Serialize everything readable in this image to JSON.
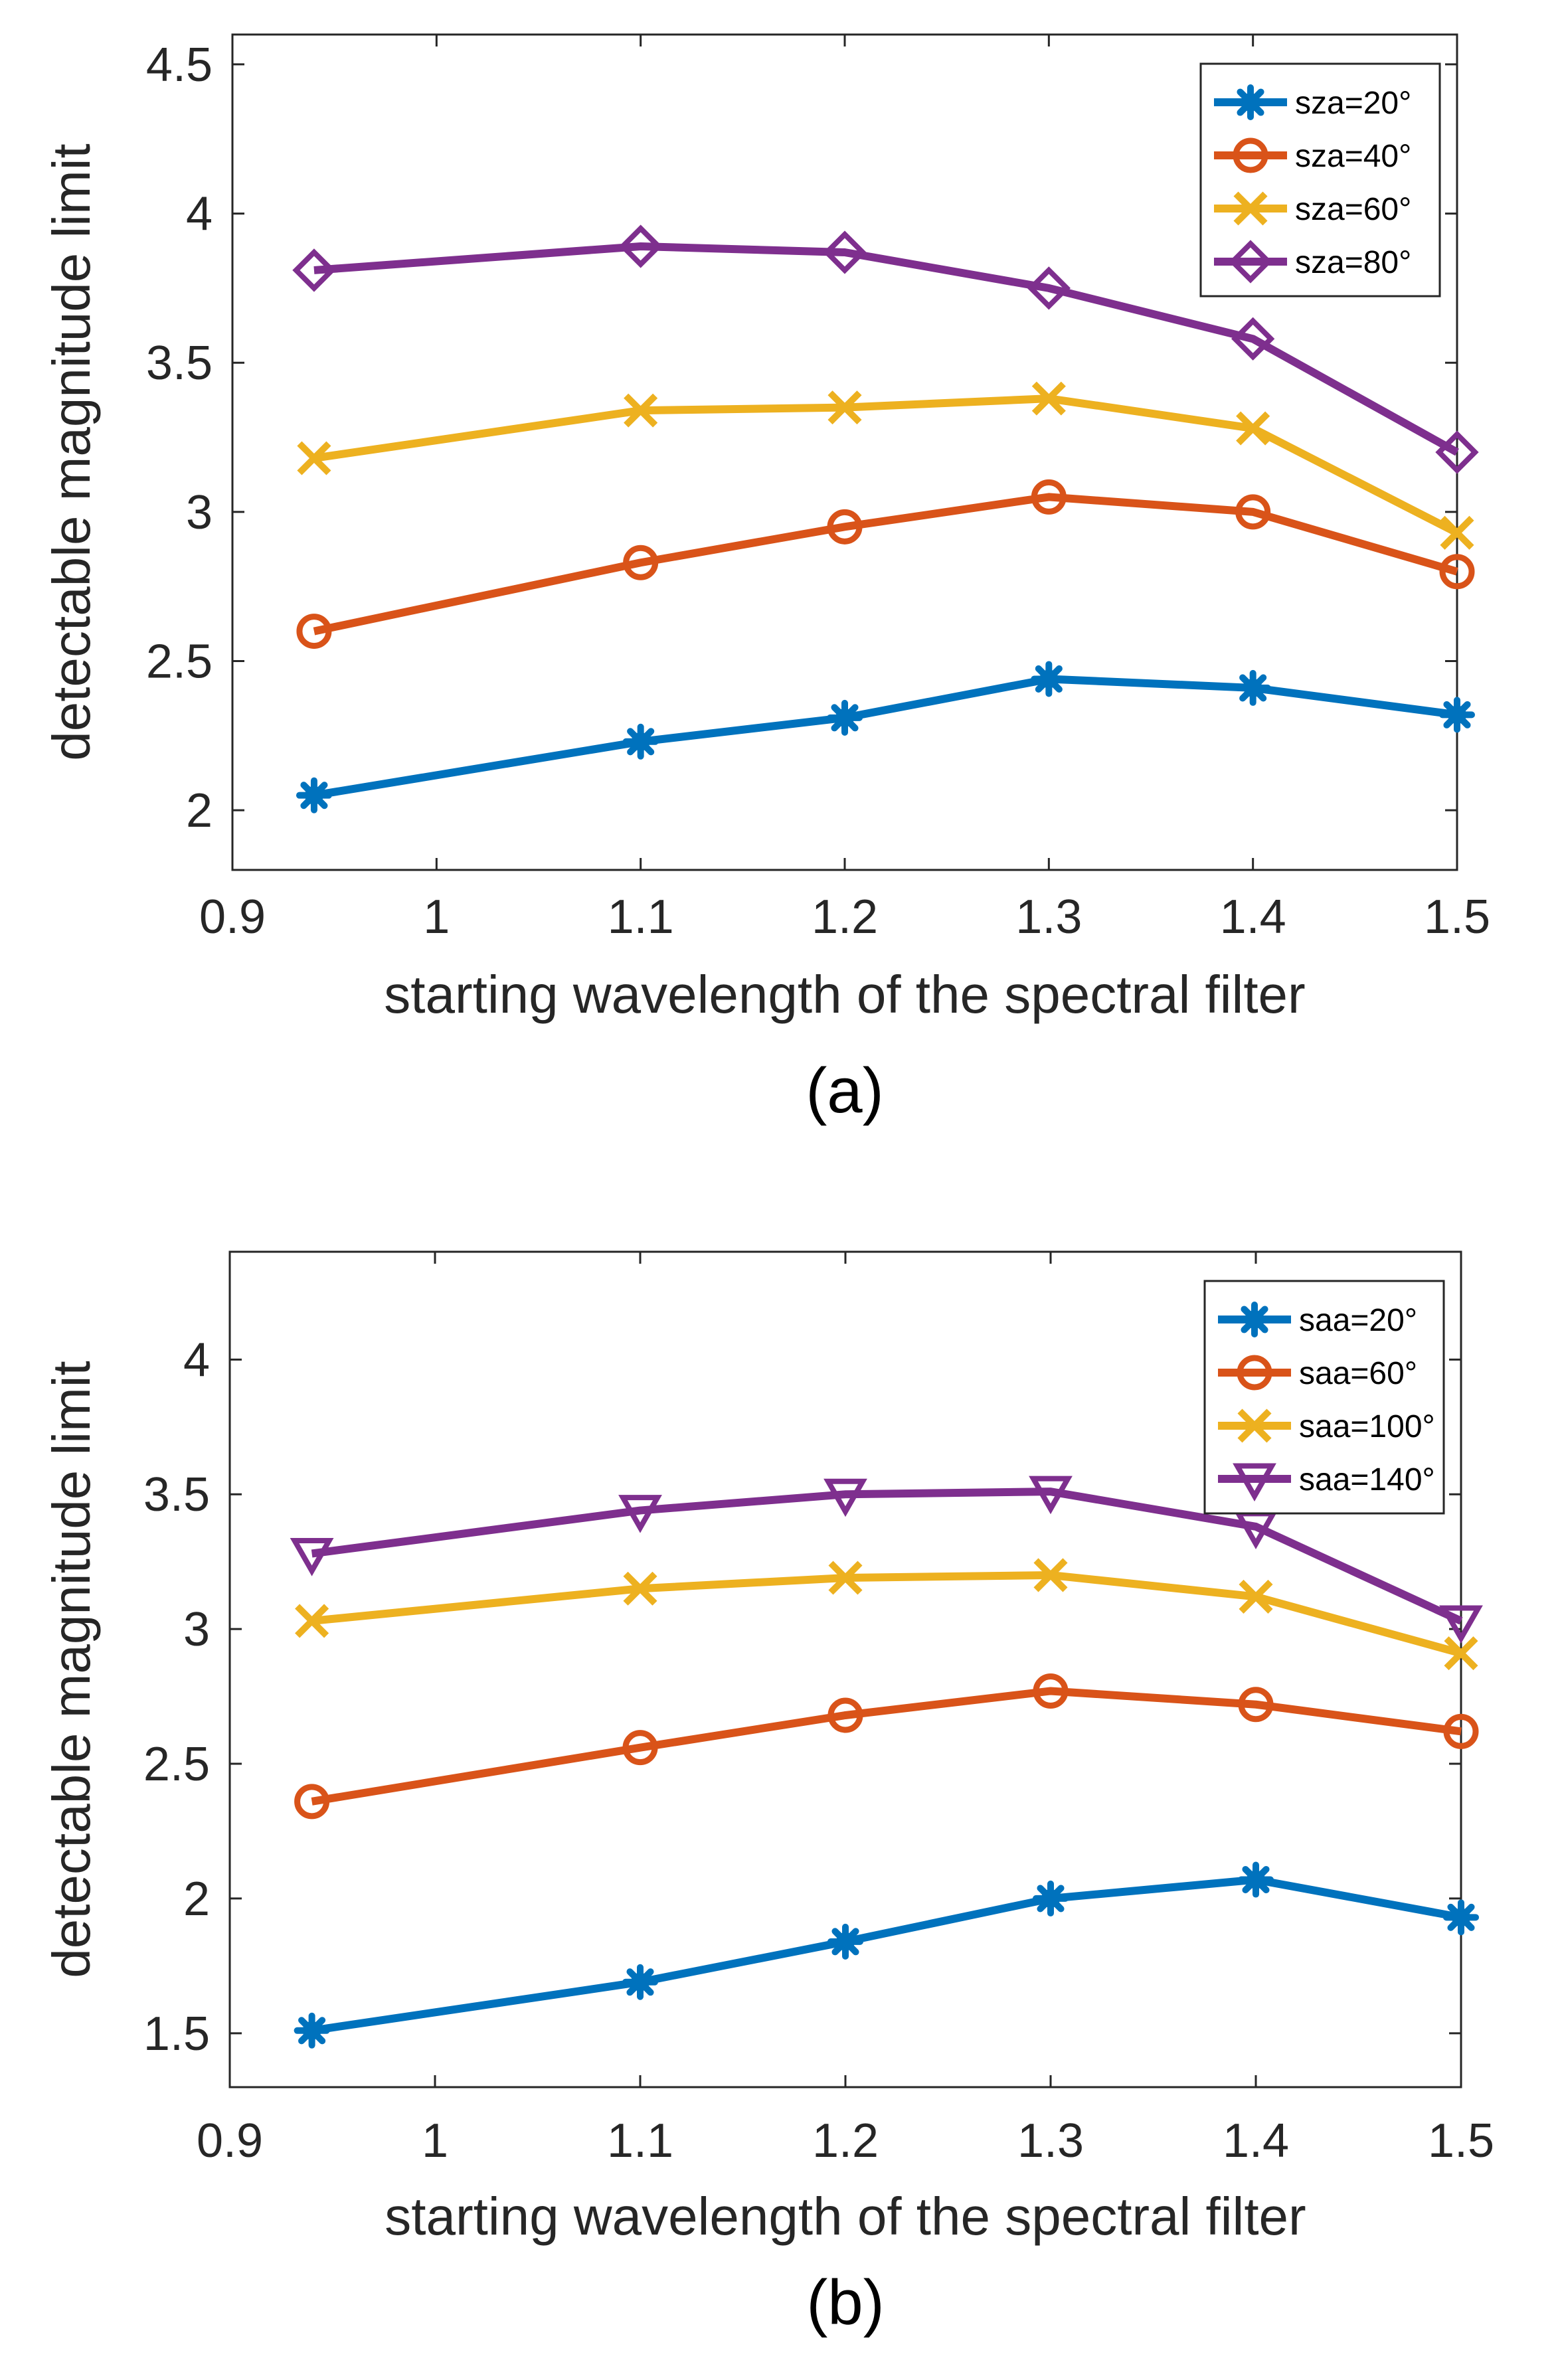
{
  "chart_data": [
    {
      "type": "line",
      "panel_label": "(a)",
      "xlabel": "starting wavelength of the spectral filter",
      "ylabel": "detectable magnitude limit",
      "xlim": [
        0.9,
        1.5
      ],
      "ylim": [
        1.8,
        4.6
      ],
      "xticks": [
        "0.9",
        "1",
        "1.1",
        "1.2",
        "1.3",
        "1.4",
        "1.5"
      ],
      "yticks": [
        "2",
        "2.5",
        "3",
        "3.5",
        "4",
        "4.5"
      ],
      "legend_position": "top-right",
      "x": [
        0.94,
        1.1,
        1.2,
        1.3,
        1.4,
        1.5
      ],
      "series": [
        {
          "name": "sza=20°",
          "marker": "asterisk",
          "color": "#0072BD",
          "values": [
            2.05,
            2.23,
            2.31,
            2.44,
            2.41,
            2.32
          ]
        },
        {
          "name": "sza=40°",
          "marker": "circle",
          "color": "#D95319",
          "values": [
            2.6,
            2.83,
            2.95,
            3.05,
            3.0,
            2.8
          ]
        },
        {
          "name": "sza=60°",
          "marker": "x",
          "color": "#EDB120",
          "values": [
            3.18,
            3.34,
            3.35,
            3.38,
            3.28,
            2.93
          ]
        },
        {
          "name": "sza=80°",
          "marker": "diamond",
          "color": "#7E2F8E",
          "values": [
            3.81,
            3.89,
            3.87,
            3.75,
            3.58,
            3.2
          ]
        }
      ]
    },
    {
      "type": "line",
      "panel_label": "(b)",
      "xlabel": "starting wavelength of the spectral filter",
      "ylabel": "detectable magnitude limit",
      "xlim": [
        0.9,
        1.5
      ],
      "ylim": [
        1.3,
        4.4
      ],
      "xticks": [
        "0.9",
        "1",
        "1.1",
        "1.2",
        "1.3",
        "1.4",
        "1.5"
      ],
      "yticks": [
        "1.5",
        "2",
        "2.5",
        "3",
        "3.5",
        "4"
      ],
      "legend_position": "top-right",
      "x": [
        0.94,
        1.1,
        1.2,
        1.3,
        1.4,
        1.5
      ],
      "series": [
        {
          "name": "saa=20°",
          "marker": "asterisk",
          "color": "#0072BD",
          "values": [
            1.51,
            1.69,
            1.84,
            2.0,
            2.07,
            1.93
          ]
        },
        {
          "name": "saa=60°",
          "marker": "circle",
          "color": "#D95319",
          "values": [
            2.36,
            2.56,
            2.68,
            2.77,
            2.72,
            2.62
          ]
        },
        {
          "name": "saa=100°",
          "marker": "x",
          "color": "#EDB120",
          "values": [
            3.03,
            3.15,
            3.19,
            3.2,
            3.12,
            2.91
          ]
        },
        {
          "name": "saa=140°",
          "marker": "triangle-down",
          "color": "#7E2F8E",
          "values": [
            3.28,
            3.44,
            3.5,
            3.51,
            3.38,
            3.03
          ]
        }
      ]
    }
  ]
}
